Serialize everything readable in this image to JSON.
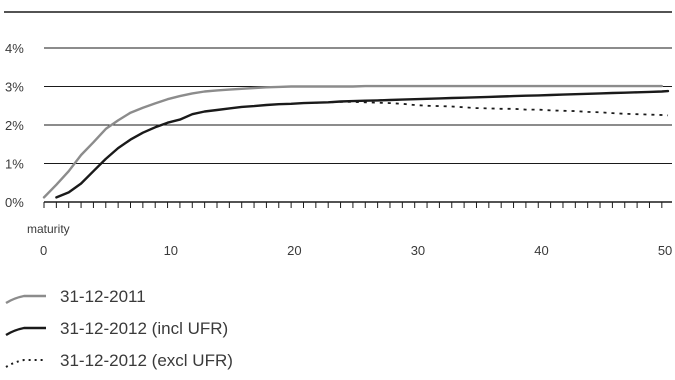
{
  "chart_data": {
    "type": "line",
    "xlabel": "maturity",
    "ylabel": "",
    "xlim": [
      0,
      50.5
    ],
    "ylim": [
      0,
      4
    ],
    "x_ticks": [
      0,
      10,
      20,
      30,
      40,
      50
    ],
    "x_tick_labels": [
      "0",
      "10",
      "20",
      "30",
      "40",
      "50"
    ],
    "y_ticks": [
      0,
      1,
      2,
      3,
      4
    ],
    "y_tick_labels": [
      "0%",
      "1%",
      "2%",
      "3%",
      "4%"
    ],
    "grid": "horizontal",
    "legend_position": "bottom-left",
    "series": [
      {
        "name": "31-12-2011",
        "color": "#8c8c8c",
        "style": "solid",
        "x": [
          0,
          1,
          2,
          3,
          4,
          5,
          6,
          7,
          8,
          9,
          10,
          11,
          12,
          13,
          14,
          15,
          16,
          17,
          18,
          19,
          20,
          21,
          22,
          23,
          24,
          25,
          26,
          27,
          28,
          29,
          30,
          31,
          32,
          33,
          34,
          35,
          36,
          37,
          38,
          39,
          40,
          41,
          42,
          43,
          44,
          45,
          46,
          47,
          48,
          49,
          50
        ],
        "y": [
          0.12,
          0.45,
          0.8,
          1.22,
          1.55,
          1.9,
          2.12,
          2.32,
          2.45,
          2.56,
          2.67,
          2.75,
          2.82,
          2.87,
          2.9,
          2.92,
          2.94,
          2.96,
          2.98,
          2.99,
          3.0,
          3.0,
          3.0,
          3.0,
          3.0,
          3.0,
          3.01,
          3.01,
          3.01,
          3.01,
          3.01,
          3.01,
          3.01,
          3.01,
          3.01,
          3.01,
          3.01,
          3.01,
          3.01,
          3.01,
          3.01,
          3.01,
          3.01,
          3.01,
          3.01,
          3.01,
          3.01,
          3.01,
          3.01,
          3.01,
          3.01
        ]
      },
      {
        "name": "31-12-2012 (incl UFR)",
        "color": "#1a1a1a",
        "style": "solid",
        "x": [
          1,
          2,
          3,
          4,
          5,
          6,
          7,
          8,
          9,
          10,
          11,
          12,
          13,
          14,
          15,
          16,
          17,
          18,
          19,
          20,
          21,
          22,
          23,
          24,
          25,
          26,
          27,
          28,
          29,
          30,
          31,
          32,
          33,
          34,
          35,
          36,
          37,
          38,
          39,
          40,
          41,
          42,
          43,
          44,
          45,
          46,
          47,
          48,
          49,
          50,
          50.5
        ],
        "y": [
          0.12,
          0.25,
          0.48,
          0.8,
          1.12,
          1.4,
          1.62,
          1.8,
          1.94,
          2.06,
          2.14,
          2.28,
          2.35,
          2.39,
          2.43,
          2.47,
          2.49,
          2.52,
          2.54,
          2.55,
          2.57,
          2.58,
          2.59,
          2.61,
          2.62,
          2.63,
          2.64,
          2.65,
          2.66,
          2.67,
          2.68,
          2.69,
          2.7,
          2.71,
          2.72,
          2.73,
          2.74,
          2.75,
          2.76,
          2.77,
          2.78,
          2.79,
          2.8,
          2.81,
          2.82,
          2.83,
          2.84,
          2.85,
          2.86,
          2.87,
          2.88
        ]
      },
      {
        "name": "31-12-2012 (excl UFR)",
        "color": "#1a1a1a",
        "style": "dotted",
        "x": [
          22,
          23,
          24,
          25,
          26,
          27,
          28,
          29,
          30,
          31,
          32,
          33,
          34,
          35,
          36,
          37,
          38,
          39,
          40,
          41,
          42,
          43,
          44,
          45,
          46,
          47,
          48,
          49,
          50,
          50.5
        ],
        "y": [
          2.58,
          2.59,
          2.6,
          2.6,
          2.59,
          2.58,
          2.57,
          2.55,
          2.52,
          2.5,
          2.49,
          2.48,
          2.46,
          2.44,
          2.43,
          2.42,
          2.42,
          2.4,
          2.4,
          2.38,
          2.37,
          2.36,
          2.34,
          2.33,
          2.31,
          2.29,
          2.28,
          2.27,
          2.26,
          2.25
        ]
      }
    ]
  }
}
